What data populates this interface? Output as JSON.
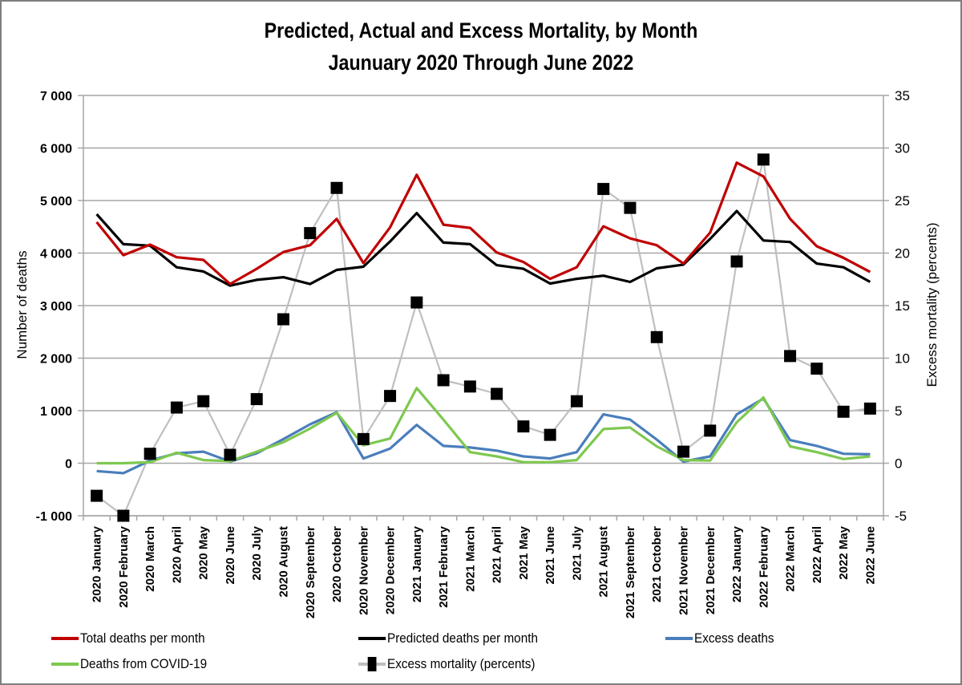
{
  "title_line1": "Predicted, Actual and Excess Mortality, by Month",
  "title_line2": "Jaunuary 2020 Through June 2022",
  "chart_data": {
    "type": "line",
    "title": "Predicted, Actual and Excess Mortality, by Month — Jaunuary 2020 Through June 2022",
    "xlabel": "",
    "ylabel": "Number of deaths",
    "y2label": "Excess mortality (percents)",
    "ylim": [
      -1000,
      7000
    ],
    "y2lim": [
      -5,
      35
    ],
    "yticks": [
      "7 000",
      "6 000",
      "5 000",
      "4 000",
      "3 000",
      "2 000",
      "1 000",
      "0",
      "-1 000"
    ],
    "ytick_values": [
      7000,
      6000,
      5000,
      4000,
      3000,
      2000,
      1000,
      0,
      -1000
    ],
    "y2ticks": [
      "35",
      "30",
      "25",
      "20",
      "15",
      "10",
      "5",
      "0",
      "-5"
    ],
    "y2tick_values": [
      35,
      30,
      25,
      20,
      15,
      10,
      5,
      0,
      -5
    ],
    "grid": true,
    "legend_position": "bottom",
    "categories": [
      "2020 January",
      "2020 February",
      "2020 March",
      "2020 April",
      "2020 May",
      "2020 June",
      "2020 July",
      "2020 August",
      "2020 September",
      "2020 October",
      "2020 November",
      "2020 December",
      "2021 January",
      "2021 February",
      "2021 March",
      "2021 April",
      "2021 May",
      "2021 June",
      "2021 July",
      "2021 August",
      "2021 September",
      "2021 October",
      "2021 November",
      "2021 December",
      "2022 January",
      "2022 February",
      "2022 March",
      "2022 April",
      "2022 May",
      "2022 June"
    ],
    "series": [
      {
        "name": "Total deaths per month",
        "axis": "left",
        "color": "#c00000",
        "marker": "none",
        "values": [
          4590,
          3960,
          4160,
          3920,
          3870,
          3410,
          3700,
          4020,
          4150,
          4650,
          3810,
          4490,
          5490,
          4540,
          4480,
          4010,
          3830,
          3510,
          3730,
          4510,
          4280,
          4150,
          3800,
          4390,
          5720,
          5460,
          4650,
          4130,
          3910,
          3640
        ]
      },
      {
        "name": "Predicted deaths per month",
        "axis": "left",
        "color": "#000000",
        "marker": "none",
        "values": [
          4740,
          4170,
          4140,
          3730,
          3650,
          3380,
          3490,
          3540,
          3410,
          3680,
          3740,
          4220,
          4760,
          4200,
          4170,
          3770,
          3700,
          3420,
          3510,
          3570,
          3450,
          3710,
          3780,
          4270,
          4800,
          4240,
          4210,
          3800,
          3730,
          3450
        ]
      },
      {
        "name": "Excess deaths",
        "axis": "left",
        "color": "#4a7ebb",
        "marker": "none",
        "values": [
          -150,
          -190,
          50,
          190,
          220,
          30,
          190,
          460,
          740,
          970,
          90,
          280,
          730,
          330,
          300,
          240,
          130,
          90,
          210,
          930,
          830,
          450,
          30,
          130,
          930,
          1230,
          440,
          330,
          180,
          170
        ]
      },
      {
        "name": "Deaths from COVID-19",
        "axis": "left",
        "color": "#7ec850",
        "marker": "none",
        "values": [
          0,
          0,
          20,
          200,
          60,
          40,
          220,
          400,
          660,
          960,
          340,
          470,
          1430,
          830,
          210,
          130,
          20,
          20,
          60,
          650,
          680,
          320,
          60,
          50,
          780,
          1250,
          320,
          210,
          80,
          130
        ]
      },
      {
        "name": "Excess mortality (percents)",
        "axis": "right",
        "color": "#bfbfbf",
        "marker": "square",
        "values": [
          -3.1,
          -5.0,
          0.9,
          5.3,
          5.9,
          0.8,
          6.1,
          13.7,
          21.9,
          26.2,
          2.3,
          6.4,
          15.3,
          7.9,
          7.3,
          6.6,
          3.5,
          2.7,
          5.9,
          26.1,
          24.3,
          12.0,
          1.1,
          3.1,
          19.2,
          28.9,
          10.2,
          9.0,
          4.9,
          5.2
        ]
      }
    ]
  },
  "legend": [
    {
      "label": "Total deaths per month",
      "color": "#c00000",
      "marker": false
    },
    {
      "label": "Predicted deaths per month",
      "color": "#000000",
      "marker": false
    },
    {
      "label": "Excess deaths",
      "color": "#4a7ebb",
      "marker": false
    },
    {
      "label": "Deaths from COVID-19",
      "color": "#7ec850",
      "marker": false
    },
    {
      "label": "Excess mortality (percents)",
      "color": "#bfbfbf",
      "marker": true
    }
  ]
}
